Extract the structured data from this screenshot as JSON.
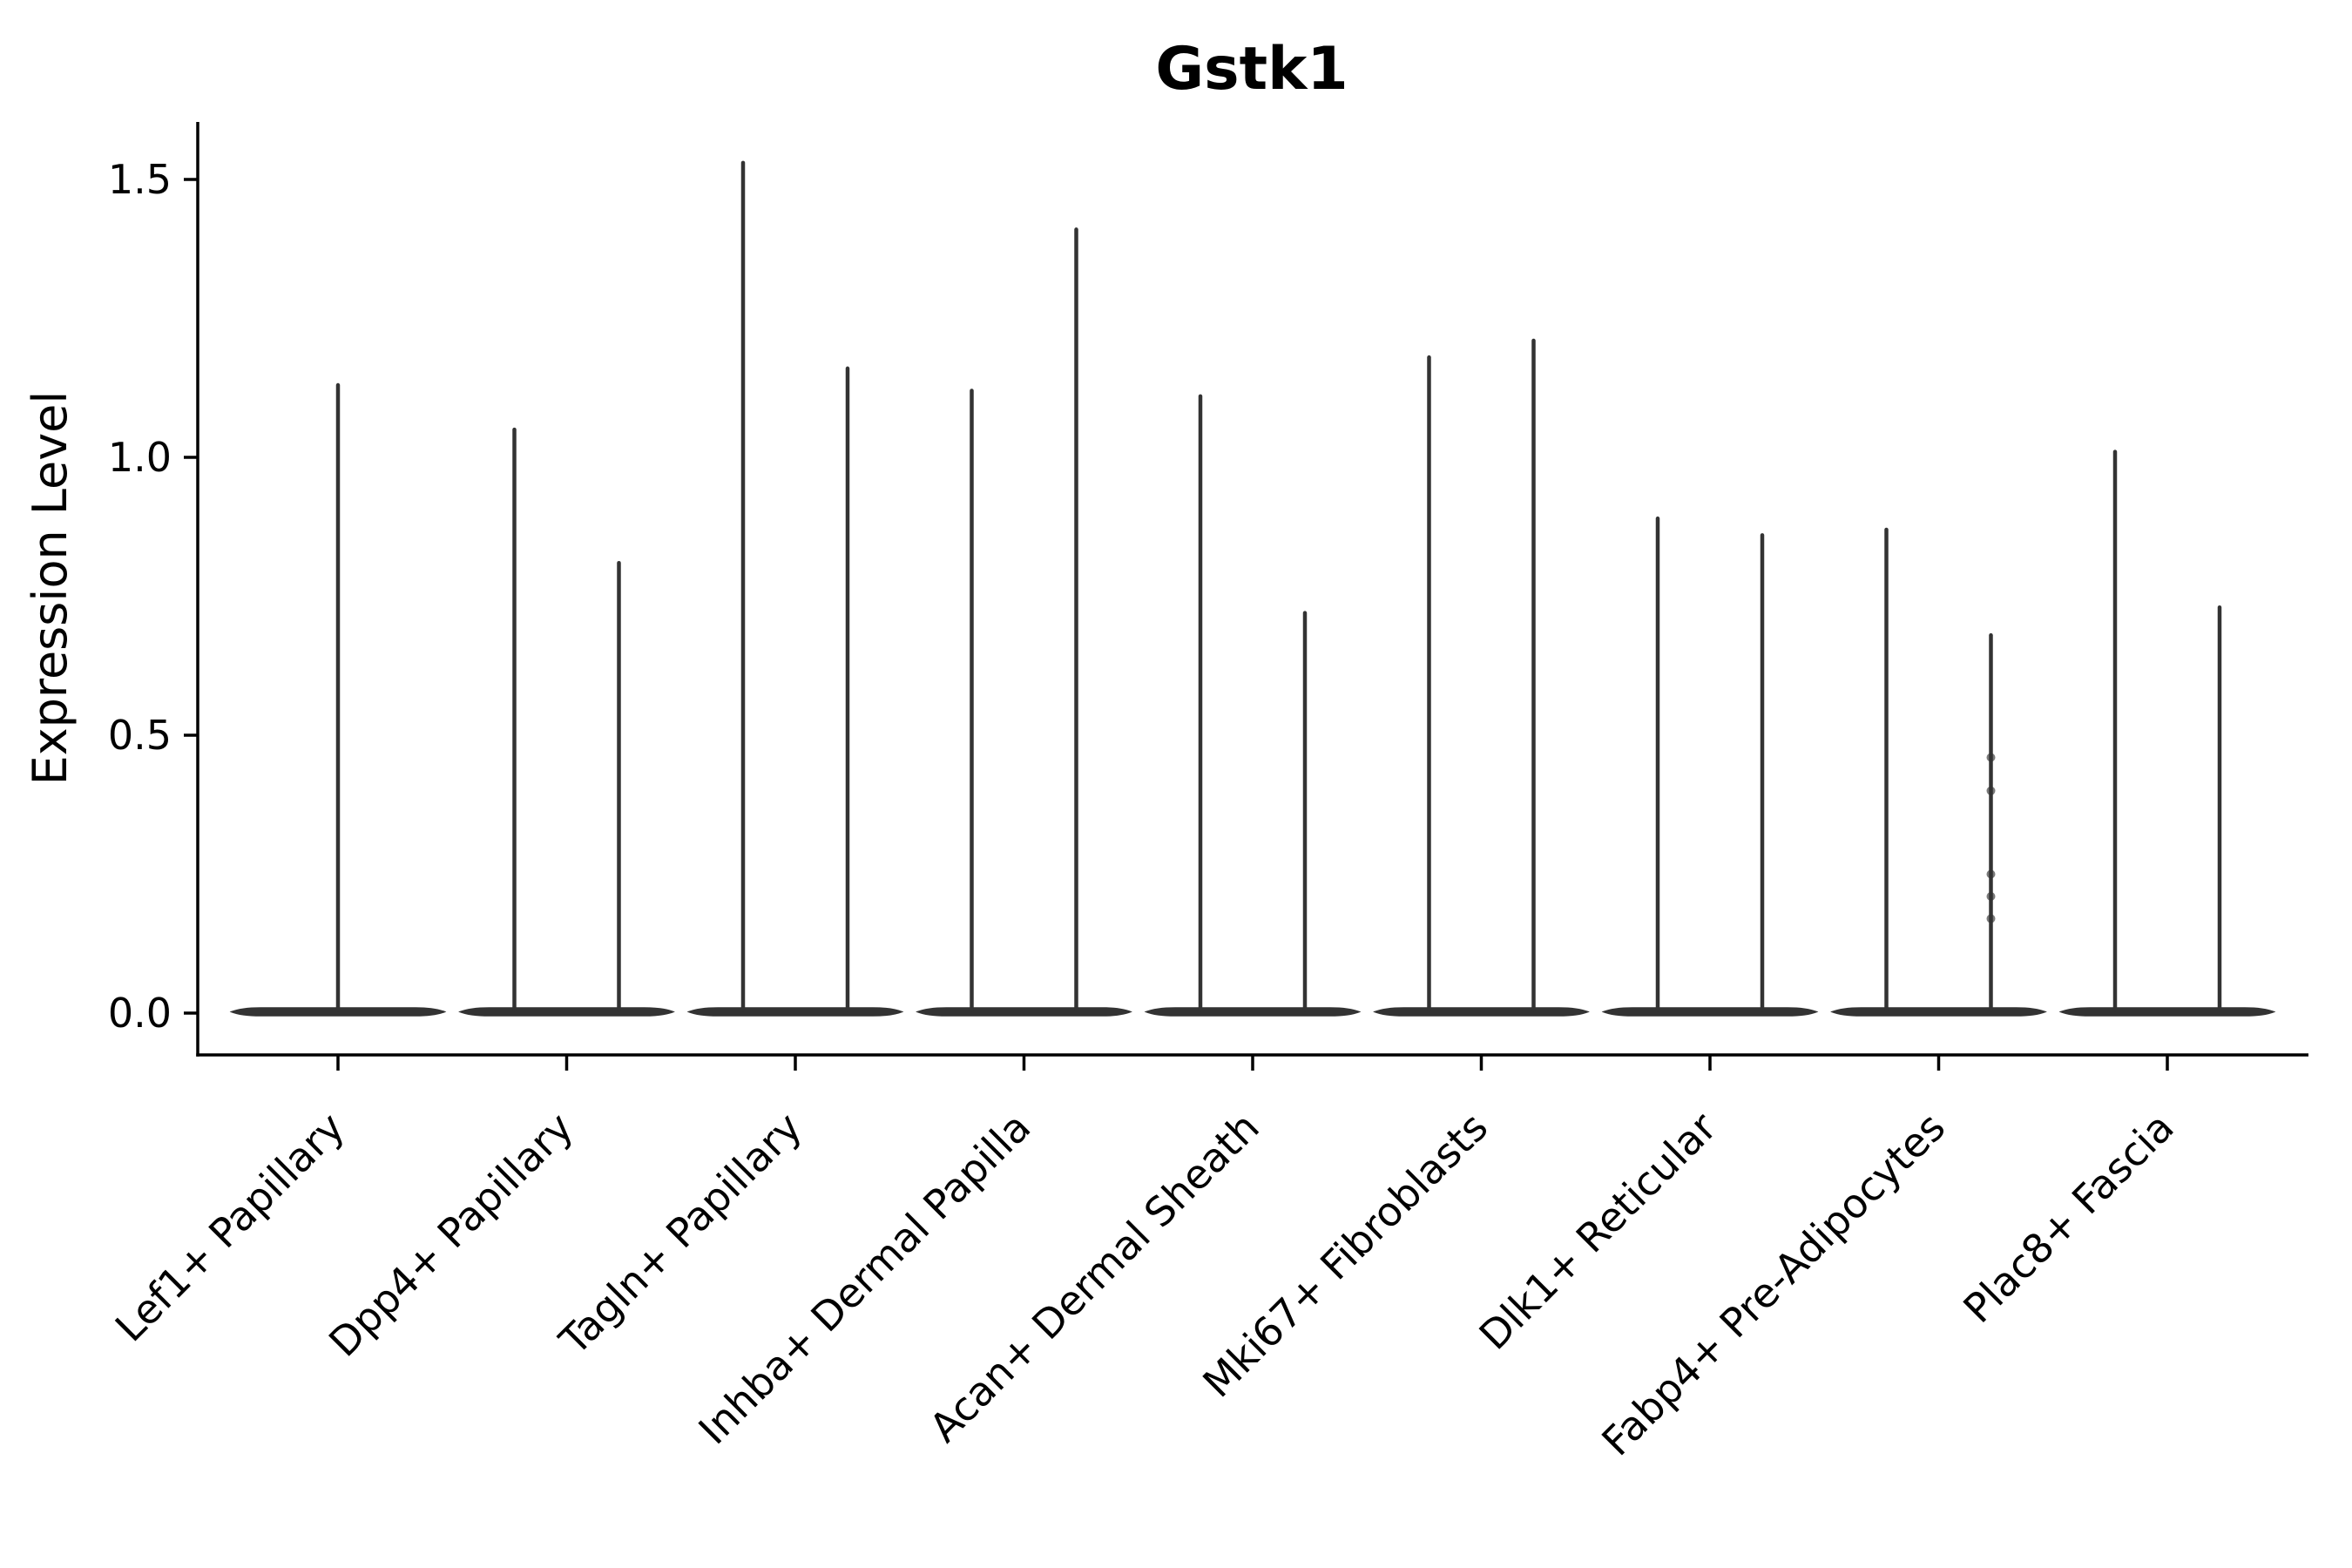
{
  "figure": {
    "title": "Gstk1",
    "ylabel": "Expression Level"
  },
  "chart_data": {
    "type": "violin",
    "title": "Gstk1",
    "xlabel": "",
    "ylabel": "Expression Level",
    "ylim": [
      -0.08,
      1.6
    ],
    "yticks": [
      0.0,
      0.5,
      1.0,
      1.5
    ],
    "ytick_labels": [
      "0.0",
      "0.5",
      "1.0",
      "1.5"
    ],
    "grid": false,
    "legend": "none",
    "baseline_value": 0.0,
    "description": "Needle-thin violins: nearly all mass at expression 0 (flat lens at baseline) with a thin tail rising to the per-violin maximum.",
    "categories": [
      "Lef1+ Papillary",
      "Dpp4+ Papillary",
      "Tagln+ Papillary",
      "Inhba+ Dermal Papilla",
      "Acan+ Dermal Sheath",
      "Mki67+ Fibroblasts",
      "Dlk1+ Reticular",
      "Fabp4+ Pre-Adipocytes",
      "Plac8+ Fascia"
    ],
    "series": [
      {
        "category": "Lef1+ Papillary",
        "violin_max_values": [
          1.13
        ]
      },
      {
        "category": "Dpp4+ Papillary",
        "violin_max_values": [
          1.05,
          0.81
        ]
      },
      {
        "category": "Tagln+ Papillary",
        "violin_max_values": [
          1.53,
          1.16
        ]
      },
      {
        "category": "Inhba+ Dermal Papilla",
        "violin_max_values": [
          1.12,
          1.41
        ]
      },
      {
        "category": "Acan+ Dermal Sheath",
        "violin_max_values": [
          1.11,
          0.72
        ]
      },
      {
        "category": "Mki67+ Fibroblasts",
        "violin_max_values": [
          1.18,
          1.21
        ]
      },
      {
        "category": "Dlk1+ Reticular",
        "violin_max_values": [
          0.89,
          0.86
        ]
      },
      {
        "category": "Fabp4+ Pre-Adipocytes",
        "violin_max_values": [
          0.87,
          0.68
        ]
      },
      {
        "category": "Plac8+ Fascia",
        "violin_max_values": [
          1.01,
          0.73
        ]
      }
    ],
    "visible_points": [
      {
        "category": "Fabp4+ Pre-Adipocytes",
        "violin_index": 1,
        "values": [
          0.46,
          0.4,
          0.25,
          0.21,
          0.17
        ]
      }
    ],
    "colors": {
      "violin": "#333333",
      "axes": "#000000",
      "text": "#000000",
      "background": "#ffffff"
    }
  }
}
